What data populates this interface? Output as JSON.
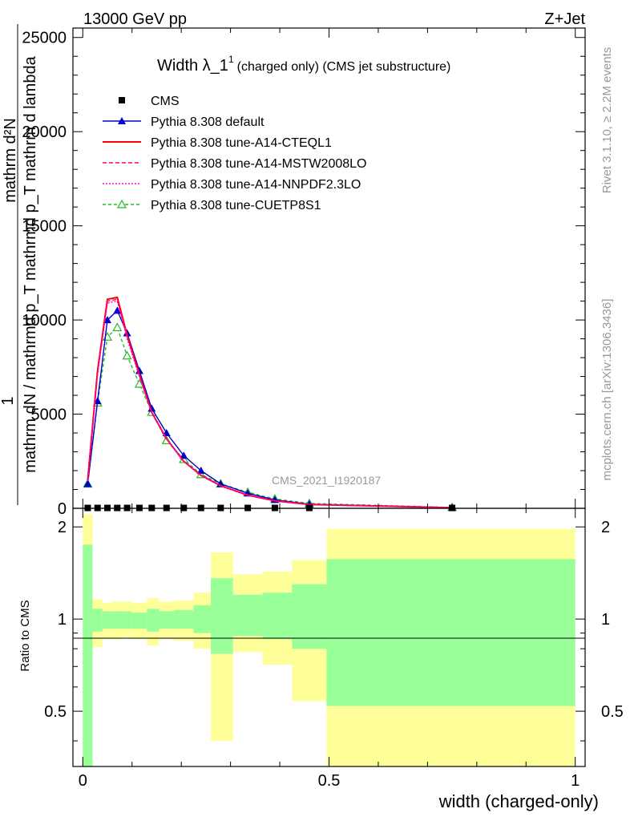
{
  "header": {
    "energy": "13000 GeV pp",
    "process": "Z+Jet",
    "side_rivet": "Rivet 3.1.10, ≥ 2.2M events",
    "side_mcplots": "mcplots.cern.ch [arXiv:1306.3436]",
    "watermark": "CMS_2021_I1920187"
  },
  "chart_data": {
    "type": "line",
    "title_main": "Width λ_1",
    "title_sup": "1",
    "title_sub": "(charged only) (CMS jet substructure)",
    "xlabel": "width (charged-only)",
    "ylabel_num": "1",
    "ylabel_den": "mathrm dN / mathrmd p_T mathrmd p_T mathrm d lambda",
    "ylabel_top": "mathrm d²N",
    "ratio_ylabel": "Ratio to CMS",
    "xlim": [
      -0.02,
      1.02
    ],
    "ylim": [
      0,
      25500
    ],
    "ratio_ylim": [
      0.33,
      2.3
    ],
    "x_ticks": [
      "0",
      "0.5",
      "1"
    ],
    "x_tick_values": [
      0,
      0.5,
      1
    ],
    "y_ticks": [
      "0",
      "5000",
      "10000",
      "15000",
      "20000",
      "25000"
    ],
    "y_tick_values": [
      0,
      5000,
      10000,
      15000,
      20000,
      25000
    ],
    "ratio_ticks": [
      "0.5",
      "1",
      "2"
    ],
    "ratio_tick_values": [
      0.5,
      1,
      2
    ],
    "x": [
      0.01,
      0.03,
      0.05,
      0.07,
      0.09,
      0.115,
      0.14,
      0.17,
      0.205,
      0.24,
      0.28,
      0.335,
      0.39,
      0.46,
      0.75
    ],
    "series": [
      {
        "name": "CMS",
        "color": "#000000",
        "marker": "square",
        "dash": "",
        "values": [
          20,
          20,
          20,
          20,
          20,
          20,
          20,
          20,
          20,
          20,
          20,
          20,
          20,
          20,
          20
        ]
      },
      {
        "name": "Pythia 8.308 default",
        "color": "#0000cc",
        "marker": "triangle-filled",
        "dash": "",
        "values": [
          1300,
          5700,
          10000,
          10500,
          9300,
          7300,
          5300,
          4000,
          2800,
          2000,
          1300,
          800,
          450,
          220,
          40
        ]
      },
      {
        "name": "Pythia 8.308 tune-A14-CTEQL1",
        "color": "#ff0000",
        "marker": "",
        "dash": "",
        "values": [
          1500,
          7300,
          11100,
          11200,
          9200,
          7100,
          5100,
          3700,
          2500,
          1750,
          1200,
          700,
          400,
          200,
          35
        ]
      },
      {
        "name": "Pythia 8.308 tune-A14-MSTW2008LO",
        "color": "#ff0066",
        "marker": "",
        "dash": "5,3",
        "values": [
          1450,
          7200,
          11000,
          11100,
          9100,
          7050,
          5100,
          3700,
          2500,
          1750,
          1200,
          700,
          400,
          200,
          35
        ]
      },
      {
        "name": "Pythia 8.308 tune-A14-NNPDF2.3LO",
        "color": "#ff00cc",
        "marker": "",
        "dash": "2,2",
        "values": [
          1450,
          7100,
          10900,
          11000,
          9000,
          7000,
          5050,
          3700,
          2500,
          1750,
          1200,
          700,
          400,
          200,
          35
        ]
      },
      {
        "name": "Pythia 8.308 tune-CUETP8S1",
        "color": "#22bb22",
        "marker": "triangle-open",
        "dash": "4,3",
        "values": [
          1300,
          5600,
          9100,
          9600,
          8100,
          6600,
          5100,
          3600,
          2600,
          1800,
          1300,
          850,
          500,
          260,
          45
        ]
      }
    ],
    "ratio_bands": [
      {
        "x0": 0.0,
        "x1": 0.02,
        "yel_lo": 0.33,
        "yel_hi": 2.2,
        "grn_lo": 0.33,
        "grn_hi": 1.75
      },
      {
        "x0": 0.02,
        "x1": 0.04,
        "yel_lo": 0.81,
        "yel_hi": 1.16,
        "grn_lo": 0.91,
        "grn_hi": 1.08
      },
      {
        "x0": 0.04,
        "x1": 0.06,
        "yel_lo": 0.86,
        "yel_hi": 1.13,
        "grn_lo": 0.93,
        "grn_hi": 1.06
      },
      {
        "x0": 0.06,
        "x1": 0.08,
        "yel_lo": 0.86,
        "yel_hi": 1.14,
        "grn_lo": 0.93,
        "grn_hi": 1.06
      },
      {
        "x0": 0.08,
        "x1": 0.1,
        "yel_lo": 0.87,
        "yel_hi": 1.14,
        "grn_lo": 0.93,
        "grn_hi": 1.06
      },
      {
        "x0": 0.1,
        "x1": 0.13,
        "yel_lo": 0.86,
        "yel_hi": 1.13,
        "grn_lo": 0.93,
        "grn_hi": 1.05
      },
      {
        "x0": 0.13,
        "x1": 0.155,
        "yel_lo": 0.82,
        "yel_hi": 1.17,
        "grn_lo": 0.91,
        "grn_hi": 1.08
      },
      {
        "x0": 0.155,
        "x1": 0.185,
        "yel_lo": 0.86,
        "yel_hi": 1.14,
        "grn_lo": 0.93,
        "grn_hi": 1.06
      },
      {
        "x0": 0.185,
        "x1": 0.225,
        "yel_lo": 0.85,
        "yel_hi": 1.15,
        "grn_lo": 0.93,
        "grn_hi": 1.07
      },
      {
        "x0": 0.225,
        "x1": 0.26,
        "yel_lo": 0.8,
        "yel_hi": 1.22,
        "grn_lo": 0.9,
        "grn_hi": 1.11
      },
      {
        "x0": 0.26,
        "x1": 0.305,
        "yel_lo": 0.4,
        "yel_hi": 1.65,
        "grn_lo": 0.77,
        "grn_hi": 1.36
      },
      {
        "x0": 0.305,
        "x1": 0.365,
        "yel_lo": 0.78,
        "yel_hi": 1.4,
        "grn_lo": 0.88,
        "grn_hi": 1.2
      },
      {
        "x0": 0.365,
        "x1": 0.425,
        "yel_lo": 0.71,
        "yel_hi": 1.43,
        "grn_lo": 0.86,
        "grn_hi": 1.22
      },
      {
        "x0": 0.425,
        "x1": 0.495,
        "yel_lo": 0.54,
        "yel_hi": 1.56,
        "grn_lo": 0.8,
        "grn_hi": 1.3
      },
      {
        "x0": 0.495,
        "x1": 1.0,
        "yel_lo": 0.33,
        "yel_hi": 1.97,
        "grn_lo": 0.52,
        "grn_hi": 1.57
      }
    ]
  }
}
